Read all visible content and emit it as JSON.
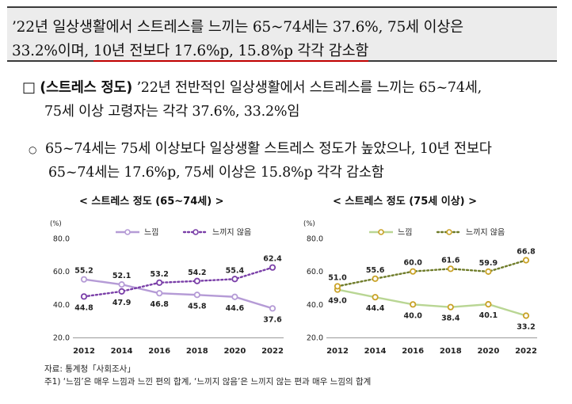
{
  "summary": {
    "line1": "’22년 일상생활에서 스트레스를 느끼는 65~74세는 37.6%, 75세 이상은",
    "line2_plain": "33.2%이며, ",
    "line2_underlined": "10년 전보다 17.6%p, 15.8%p 각각 감소함"
  },
  "bullet1": {
    "marker": "□",
    "heading": "(스트레스 정도)",
    "text_line1": " ’22년 전반적인 일상생활에서 스트레스를 느끼는 65~74세,",
    "text_line2": "75세 이상 고령자는 각각 37.6%, 33.2%임"
  },
  "bullet2": {
    "marker": "○",
    "text_line1": "65~74세는 75세 이상보다 일상생활 스트레스 정도가 높았으나, 10년 전보다",
    "text_line2": "65~74세는 17.6%p, 75세 이상은 15.8%p 각각 감소함"
  },
  "chart_data": [
    {
      "type": "line",
      "title": "< 스트레스 정도 (65~74세) >",
      "ylabel": "(%)",
      "ylim": [
        20,
        80
      ],
      "yticks": [
        "80.0",
        "60.0",
        "40.0",
        "20.0"
      ],
      "categories": [
        "2012",
        "2014",
        "2016",
        "2018",
        "2020",
        "2022"
      ],
      "series": [
        {
          "name": "느낌",
          "style": "solid",
          "color": "#b59bd6",
          "values": [
            55.2,
            52.1,
            46.8,
            45.8,
            44.6,
            37.6
          ],
          "labels": [
            "55.2",
            "52.1",
            "46.8",
            "45.8",
            "44.6",
            "37.6"
          ]
        },
        {
          "name": "느끼지 않음",
          "style": "dotted",
          "color": "#7a3fa8",
          "values": [
            44.8,
            47.9,
            53.2,
            54.2,
            55.4,
            62.4
          ],
          "labels": [
            "44.8",
            "47.9",
            "53.2",
            "54.2",
            "55.4",
            "62.4"
          ]
        }
      ]
    },
    {
      "type": "line",
      "title": "< 스트레스 정도 (75세 이상) >",
      "ylabel": "(%)",
      "ylim": [
        20,
        80
      ],
      "yticks": [
        "80.0",
        "60.0",
        "40.0",
        "20.0"
      ],
      "categories": [
        "2012",
        "2014",
        "2016",
        "2018",
        "2020",
        "2022"
      ],
      "series": [
        {
          "name": "느낌",
          "style": "solid",
          "color": "#b9d694",
          "values": [
            49.0,
            44.4,
            40.0,
            38.4,
            40.1,
            33.2
          ],
          "labels": [
            "49.0",
            "44.4",
            "40.0",
            "38.4",
            "40.1",
            "33.2"
          ]
        },
        {
          "name": "느끼지 않음",
          "style": "dotted",
          "color": "#6f7c2a",
          "values": [
            51.0,
            55.6,
            60.0,
            61.6,
            59.9,
            66.8
          ],
          "labels": [
            "51.0",
            "55.6",
            "60.0",
            "61.6",
            "59.9",
            "66.8"
          ]
        }
      ]
    }
  ],
  "marker_color": "#c9a227",
  "source": "자료: 통계청「사회조사」",
  "note": "주1) ‘느낌’은 매우 느낌과 느낀 편의 합계, ‘느끼지 않음’은 느끼지 않는 편과 매우 느낌의 합계"
}
